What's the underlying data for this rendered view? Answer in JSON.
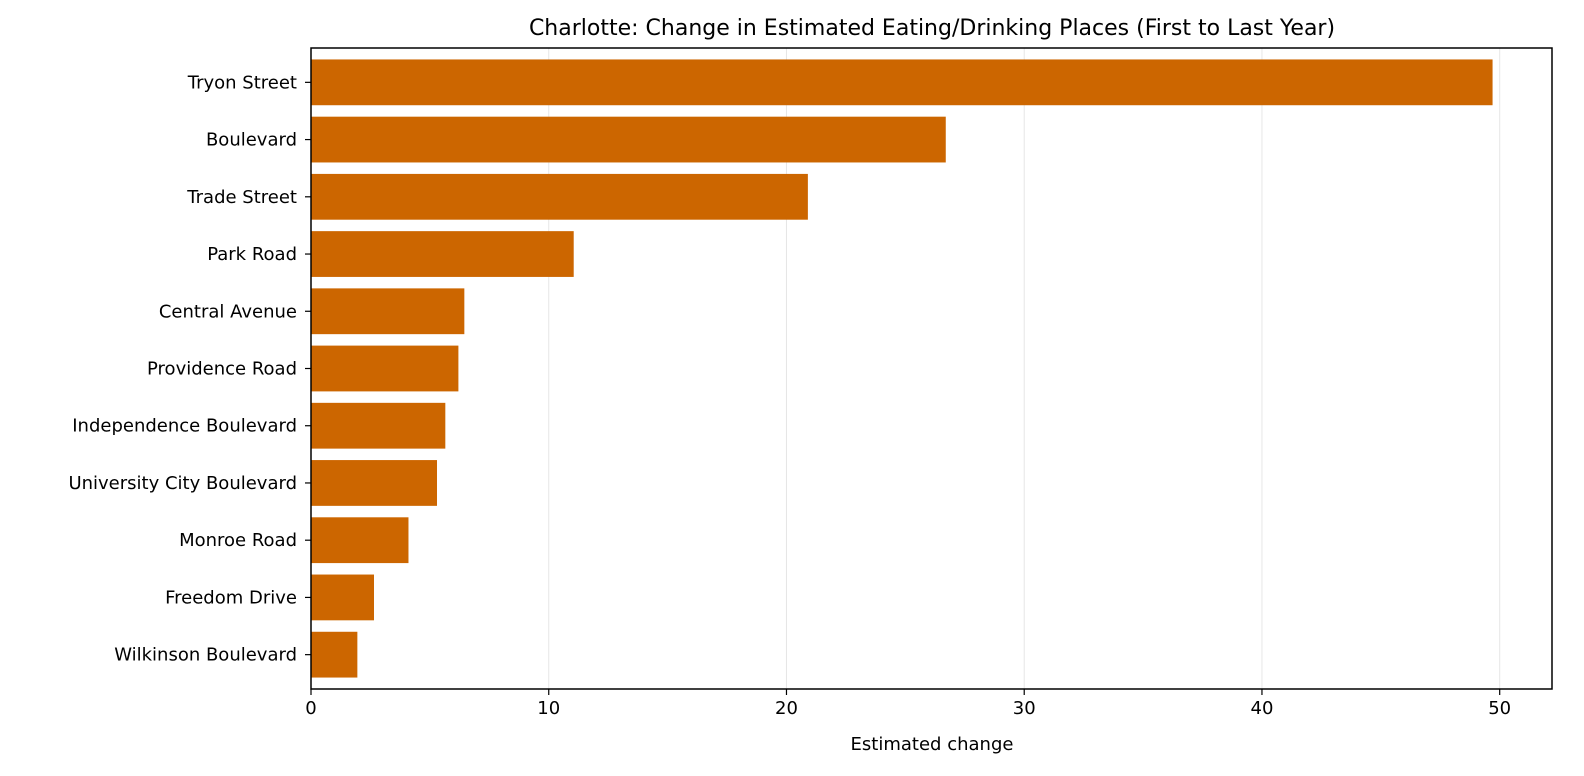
{
  "chart_data": {
    "type": "bar",
    "orientation": "horizontal",
    "title": "Charlotte: Change in Estimated Eating/Drinking Places (First to Last Year)",
    "xlabel": "Estimated change",
    "ylabel": "",
    "xlim": [
      0,
      52.2
    ],
    "xticks": [
      0,
      10,
      20,
      30,
      40,
      50
    ],
    "grid": "x",
    "bar_color": "#cc6600",
    "categories": [
      "Tryon Street",
      "Boulevard",
      "Trade Street",
      "Park Road",
      "Central Avenue",
      "Providence Road",
      "Independence Boulevard",
      "University City Boulevard",
      "Monroe Road",
      "Freedom Drive",
      "Wilkinson Boulevard"
    ],
    "values": [
      49.7,
      26.7,
      20.9,
      11.05,
      6.45,
      6.2,
      5.65,
      5.3,
      4.1,
      2.65,
      1.95
    ]
  }
}
